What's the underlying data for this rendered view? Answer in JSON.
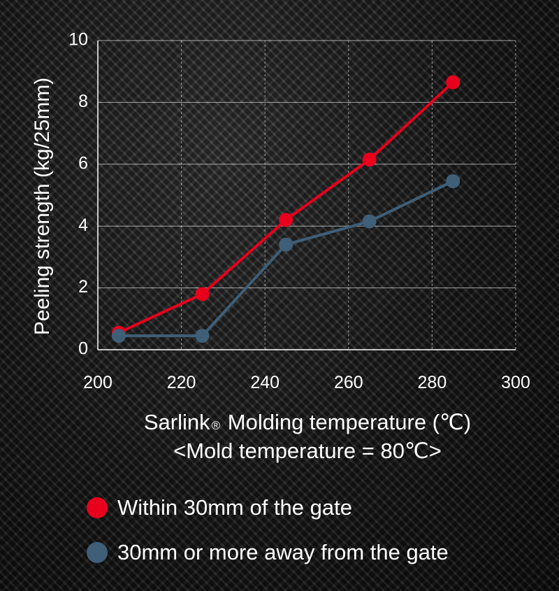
{
  "chart_data": {
    "type": "line",
    "title": "",
    "ylabel": "Peeling strength (kg/25mm)",
    "xlabel_line1_prefix": "Sarlink",
    "xlabel_line1_reg": "®",
    "xlabel_line1_suffix": " Molding temperature (℃)",
    "xlabel_line2": "<Mold temperature = 80℃>",
    "xlim": [
      200,
      300
    ],
    "ylim": [
      0,
      10
    ],
    "xticks": [
      200,
      220,
      240,
      260,
      280,
      300
    ],
    "yticks": [
      0,
      2,
      4,
      6,
      8,
      10
    ],
    "grid": true,
    "legend_position": "bottom",
    "series": [
      {
        "name": "Within 30mm of the gate",
        "color": "#e8001c",
        "x": [
          205,
          225,
          245,
          265,
          285
        ],
        "y": [
          0.55,
          1.8,
          4.2,
          6.15,
          8.65
        ]
      },
      {
        "name": "30mm or more away from the gate",
        "color": "#3f5f79",
        "x": [
          205,
          225,
          245,
          265,
          285
        ],
        "y": [
          0.45,
          0.45,
          3.4,
          4.15,
          5.45
        ]
      }
    ]
  }
}
